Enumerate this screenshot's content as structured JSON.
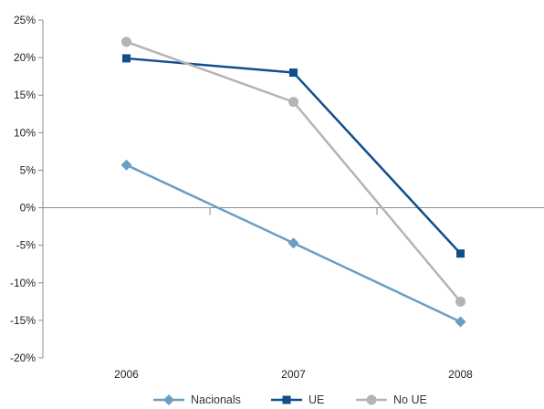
{
  "chart_data": {
    "type": "line",
    "title": "",
    "xlabel": "",
    "ylabel": "",
    "categories": [
      "2006",
      "2007",
      "2008"
    ],
    "ylim": [
      -20,
      25
    ],
    "ytick_step": 5,
    "ytick_suffix": "%",
    "grid": false,
    "legend_position": "bottom",
    "series": [
      {
        "name": "Nacionals",
        "values": [
          5.7,
          -4.7,
          -15.2
        ],
        "color": "#6a9ec4",
        "marker": "diamond"
      },
      {
        "name": "UE",
        "values": [
          19.9,
          18.0,
          -6.1
        ],
        "color": "#0f4f8c",
        "marker": "square"
      },
      {
        "name": "No UE",
        "values": [
          22.1,
          14.1,
          -12.5
        ],
        "color": "#b4b4b4",
        "marker": "circle"
      }
    ]
  }
}
